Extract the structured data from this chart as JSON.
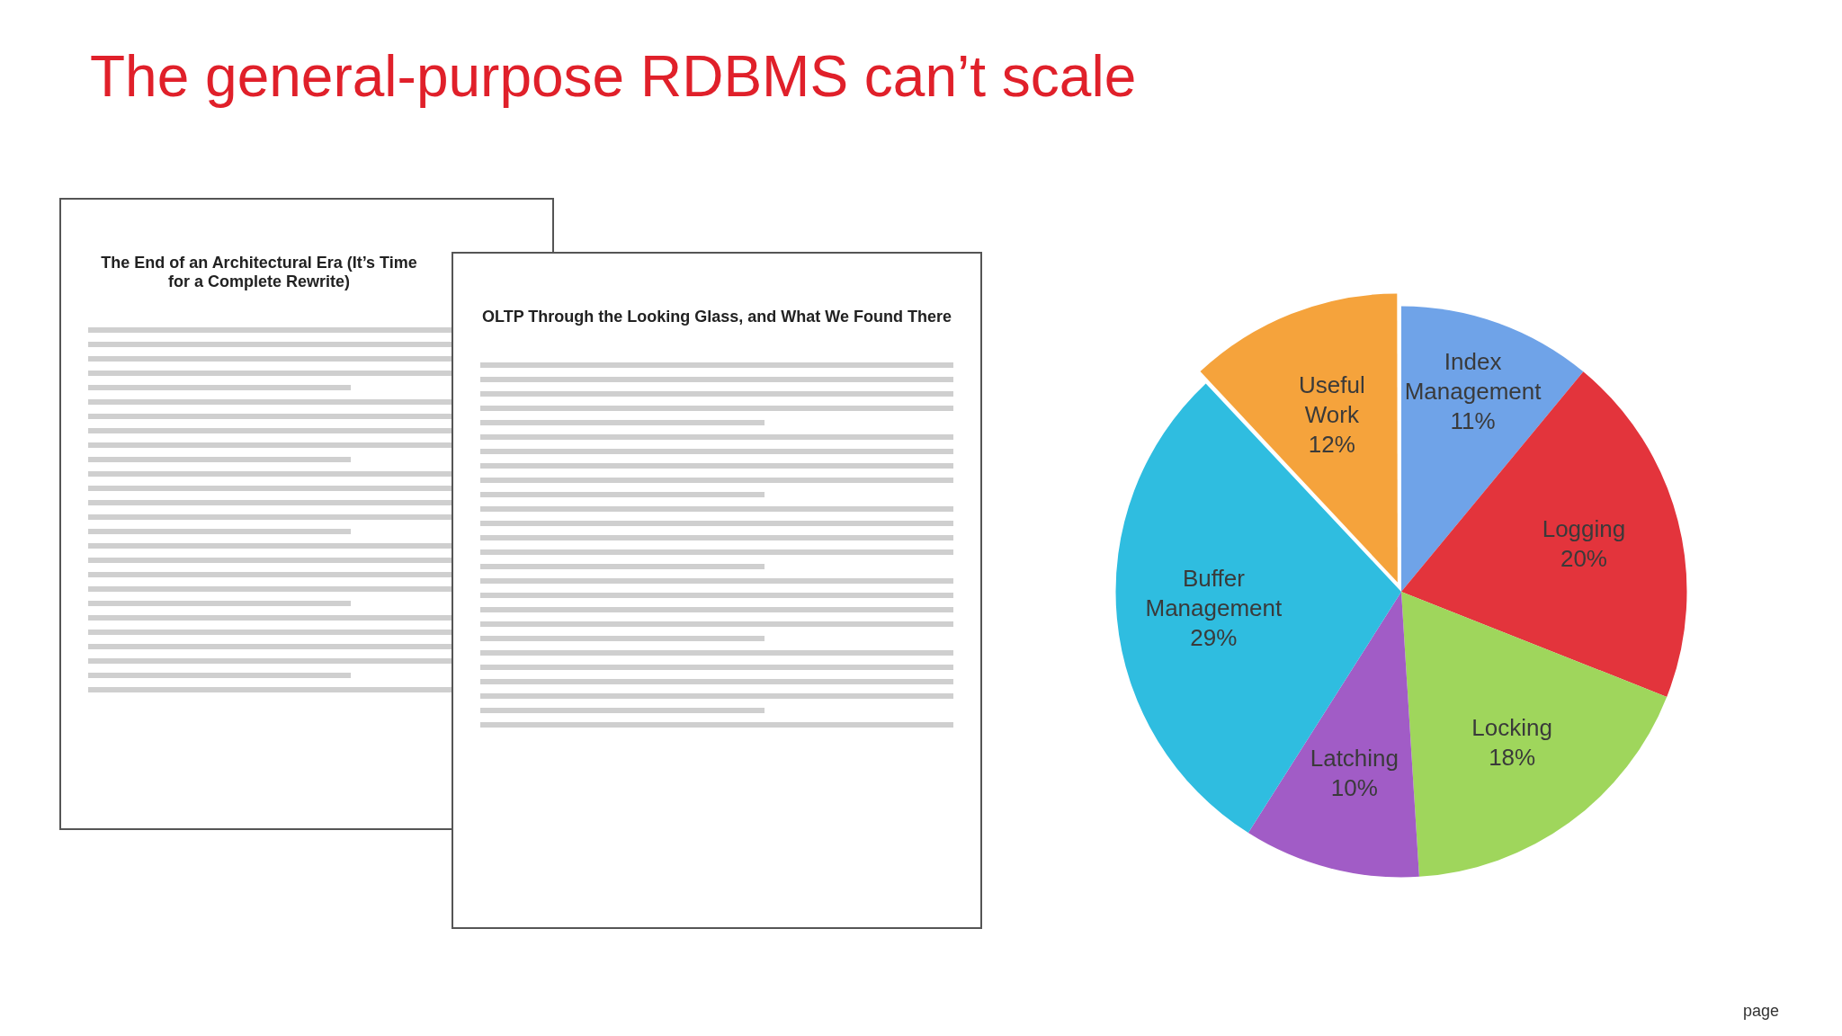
{
  "chart_data": {
    "type": "pie",
    "title": "The general-purpose RDBMS can’t scale",
    "categories": [
      "Index Management",
      "Logging",
      "Locking",
      "Latching",
      "Buffer Management",
      "Useful Work"
    ],
    "values": [
      11,
      20,
      18,
      10,
      29,
      12
    ],
    "colors": [
      "#6fa3e8",
      "#e3343c",
      "#9fd65c",
      "#a15cc6",
      "#2fbde0",
      "#f5a33c"
    ],
    "value_labels": [
      "11%",
      "20%",
      "18%",
      "10%",
      "29%",
      "12%"
    ],
    "annotations": [
      "The End of an Architectural Era (It’s Time for a Complete Rewrite)",
      "OLTP Through the Looking Glass, and What We Found There",
      "page"
    ]
  }
}
